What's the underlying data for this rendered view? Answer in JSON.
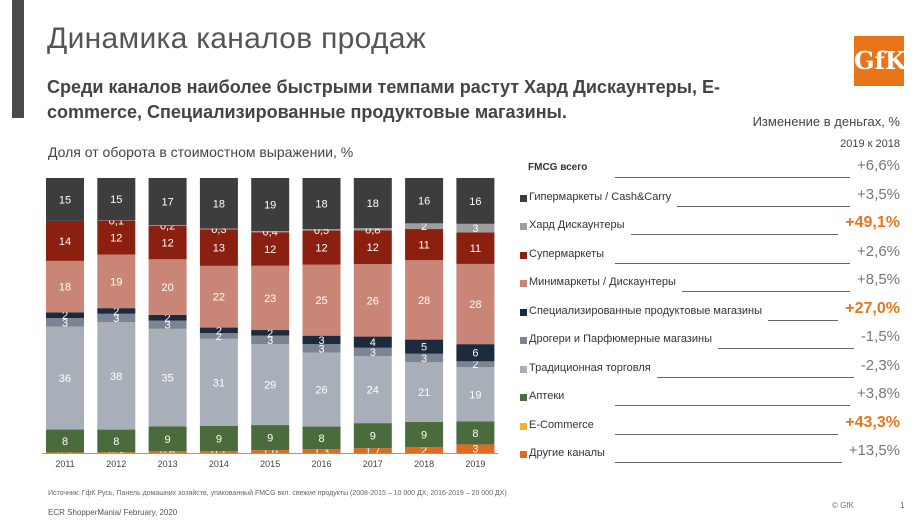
{
  "header": {
    "title": "Динамика каналов продаж",
    "logo_text": "GfK",
    "subtitle": "Среди каналов наиболее быстрыми темпами растут Хард Дискаунтеры, E-commerce, Специализированные продуктовые магазины.",
    "chart_title": "Доля от оборота в стоимостном выражении, %"
  },
  "right_panel": {
    "header": "Изменение в деньгах, %",
    "subheader": "2019 к 2018",
    "rows": [
      {
        "label": "FMCG всего",
        "value": "+6,6%",
        "color": "",
        "highlight": false
      },
      {
        "label": "Гипермаркеты /  Cash&Carry",
        "value": "+3,5%",
        "color": "#3d3d3d",
        "highlight": false
      },
      {
        "label": "Хард Дискаунтеры",
        "value": "+49,1%",
        "color": "#9e9e9e",
        "highlight": true
      },
      {
        "label": "Супермаркеты",
        "value": "+2,6%",
        "color": "#8b1f10",
        "highlight": false
      },
      {
        "label": "Минимаркеты / Дискаунтеры",
        "value": "+8,5%",
        "color": "#c98677",
        "highlight": false
      },
      {
        "label": "Специализированные продуктовые магазины",
        "value": "+27,0%",
        "color": "#1c2a3e",
        "highlight": true
      },
      {
        "label": "Дрогери и Парфюмерные магазины",
        "value": "-1,5%",
        "color": "#7b8493",
        "highlight": false
      },
      {
        "label": "Традиционная торговля",
        "value": "-2,3%",
        "color": "#a9afb9",
        "highlight": false
      },
      {
        "label": "Аптеки",
        "value": "+3,8%",
        "color": "#4a6b3b",
        "highlight": false
      },
      {
        "label": "E-Commerce",
        "value": "+43,3%",
        "color": "#f0b428",
        "highlight": true
      },
      {
        "label": "Другие каналы",
        "value": "+13,5%",
        "color": "#e06a1f",
        "highlight": false
      }
    ]
  },
  "chart_data": {
    "type": "bar",
    "stacked": true,
    "title": "Доля от оборота в стоимостном выражении, %",
    "categories": [
      "2011",
      "2012",
      "2013",
      "2014",
      "2015",
      "2016",
      "2017",
      "2018",
      "2019"
    ],
    "series": [
      {
        "name": "Другие каналы",
        "color": "#e06a1f",
        "values": [
          0.2,
          0.3,
          0.6,
          0.7,
          1.0,
          1.3,
          1.7,
          2,
          3
        ],
        "labels": [
          "0,2",
          "0,3",
          "0,6",
          "0,7",
          "1,0",
          "1,3",
          "1,7",
          "2",
          "3"
        ],
        "text": "#ffffff"
      },
      {
        "name": "E-Commerce",
        "color": "#f0b428",
        "values": [
          0,
          0,
          0,
          0,
          0,
          0,
          0,
          0,
          0
        ],
        "labels": [
          "",
          "",
          "",
          "",
          "",
          "",
          "",
          "",
          ""
        ],
        "text": "#ffffff"
      },
      {
        "name": "Аптеки",
        "color": "#4a6b3b",
        "values": [
          8,
          8,
          9,
          9,
          9,
          8,
          9,
          9,
          8
        ],
        "labels": [
          "8",
          "8",
          "9",
          "9",
          "9",
          "8",
          "9",
          "9",
          "8"
        ],
        "text": "#ffffff"
      },
      {
        "name": "Традиционная торговля",
        "color": "#a9afb9",
        "values": [
          36,
          38,
          35,
          31,
          29,
          26,
          24,
          21,
          19
        ],
        "labels": [
          "36",
          "38",
          "35",
          "31",
          "29",
          "26",
          "24",
          "21",
          "19"
        ],
        "text": "#ffffff"
      },
      {
        "name": "Дрогери и Парфюмерные магазины",
        "color": "#7b8493",
        "values": [
          3,
          3,
          3,
          2,
          3,
          3,
          3,
          3,
          2
        ],
        "labels": [
          "3",
          "3",
          "3",
          "2",
          "3",
          "3",
          "3",
          "3",
          "2"
        ],
        "text": "#ffffff"
      },
      {
        "name": "Специализированные продуктовые магазины",
        "color": "#1c2a3e",
        "values": [
          2,
          2,
          2,
          2,
          2,
          3,
          4,
          5,
          6
        ],
        "labels": [
          "2",
          "2",
          "2",
          "2",
          "2",
          "3",
          "4",
          "5",
          "6"
        ],
        "text": "#ffffff"
      },
      {
        "name": "Минимаркеты / Дискаунтеры",
        "color": "#c98677",
        "values": [
          18,
          19,
          20,
          22,
          23,
          25,
          26,
          28,
          28
        ],
        "labels": [
          "18",
          "19",
          "20",
          "22",
          "23",
          "25",
          "26",
          "28",
          "28"
        ],
        "text": "#ffffff"
      },
      {
        "name": "Супермаркеты",
        "color": "#8b1f10",
        "values": [
          14,
          12,
          12,
          13,
          12,
          12,
          12,
          11,
          11
        ],
        "labels": [
          "14",
          "12",
          "12",
          "13",
          "12",
          "12",
          "12",
          "11",
          "11"
        ],
        "text": "#ffffff"
      },
      {
        "name": "Хард Дискаунтеры",
        "color": "#9e9e9e",
        "values": [
          0,
          0.1,
          0.2,
          0.3,
          0.4,
          0.5,
          0.8,
          2,
          3
        ],
        "labels": [
          "",
          "0,1",
          "0,2",
          "0,3",
          "0,4",
          "0,5",
          "0,8",
          "2",
          "3"
        ],
        "text": "#ffffff"
      },
      {
        "name": "Гипермаркеты /  Cash&Carry",
        "color": "#3d3d3d",
        "values": [
          15,
          15,
          17,
          18,
          19,
          18,
          18,
          16,
          16
        ],
        "labels": [
          "15",
          "15",
          "17",
          "18",
          "19",
          "18",
          "18",
          "16",
          "16"
        ],
        "text": "#ffffff"
      }
    ],
    "ylim": [
      0,
      100
    ],
    "xlabel": "",
    "ylabel": "",
    "grid": false,
    "legend": "right"
  },
  "footer": {
    "source": "Источник: ГфК Русь, Панель домашних хозяйств, упакованный FMCG вкл. свежие продукты (2008-2015 – 10 000 ДХ, 2016-2019 – 20 000 ДХ)",
    "left": "ECR ShopperMania/ February, 2020",
    "copyright": "© GfK",
    "page": "1"
  }
}
